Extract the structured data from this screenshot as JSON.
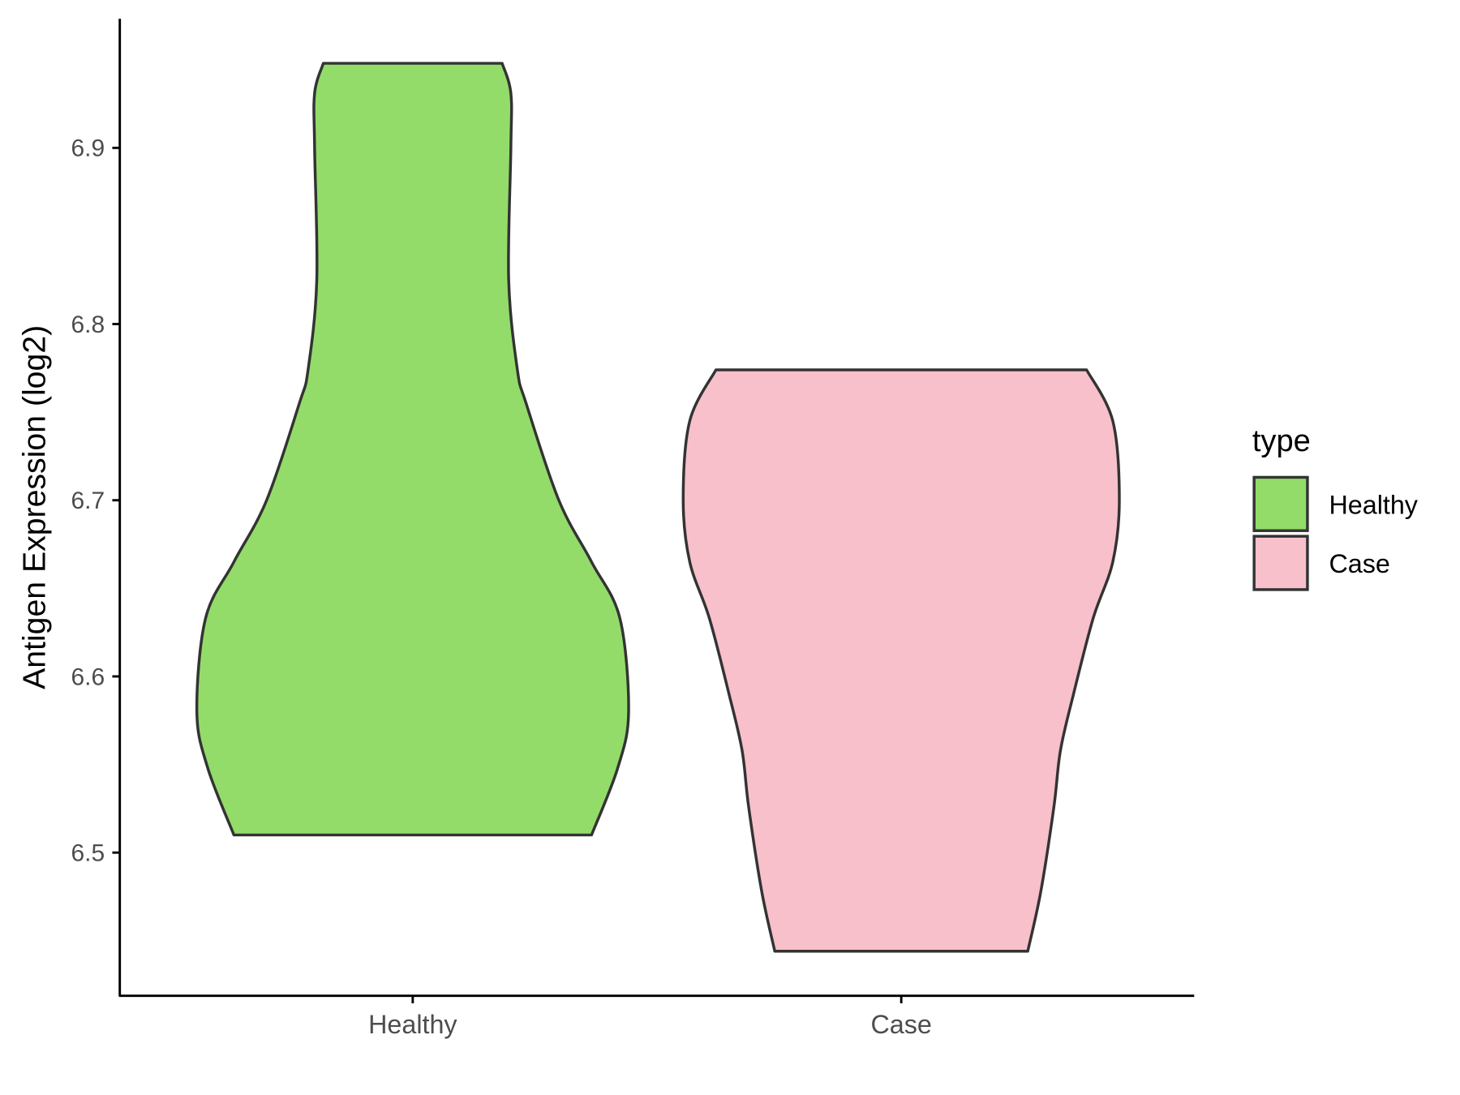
{
  "chart_data": {
    "type": "violin",
    "title": "",
    "xlabel": "",
    "ylabel": "Antigen Expression (log2)",
    "categories": [
      "Healthy",
      "Case"
    ],
    "ylim": [
      6.419,
      6.973
    ],
    "yticks": [
      6.5,
      6.6,
      6.7,
      6.8,
      6.9
    ],
    "ytick_labels": [
      "6.5",
      "6.6",
      "6.7",
      "6.8",
      "6.9"
    ],
    "grid": false,
    "legend": {
      "title": "type",
      "placement": "right",
      "entries": [
        "Healthy",
        "Case"
      ]
    },
    "series": [
      {
        "category": "Healthy",
        "color": "#93DC6A",
        "min": 6.51,
        "max": 6.948,
        "density_profile": [
          [
            6.948,
            0.41
          ],
          [
            6.931,
            0.45
          ],
          [
            6.9,
            0.45
          ],
          [
            6.825,
            0.44
          ],
          [
            6.774,
            0.48
          ],
          [
            6.755,
            0.52
          ],
          [
            6.7,
            0.67
          ],
          [
            6.665,
            0.82
          ],
          [
            6.633,
            0.95
          ],
          [
            6.58,
            0.99
          ],
          [
            6.548,
            0.94
          ],
          [
            6.51,
            0.82
          ]
        ]
      },
      {
        "category": "Case",
        "color": "#F7C0CB",
        "min": 6.444,
        "max": 6.774,
        "density_profile": [
          [
            6.774,
            0.85
          ],
          [
            6.745,
            0.97
          ],
          [
            6.7,
            1.0
          ],
          [
            6.665,
            0.97
          ],
          [
            6.633,
            0.88
          ],
          [
            6.59,
            0.79
          ],
          [
            6.558,
            0.73
          ],
          [
            6.526,
            0.7
          ],
          [
            6.478,
            0.64
          ],
          [
            6.444,
            0.58
          ]
        ]
      }
    ],
    "outline_color": "#333333"
  }
}
